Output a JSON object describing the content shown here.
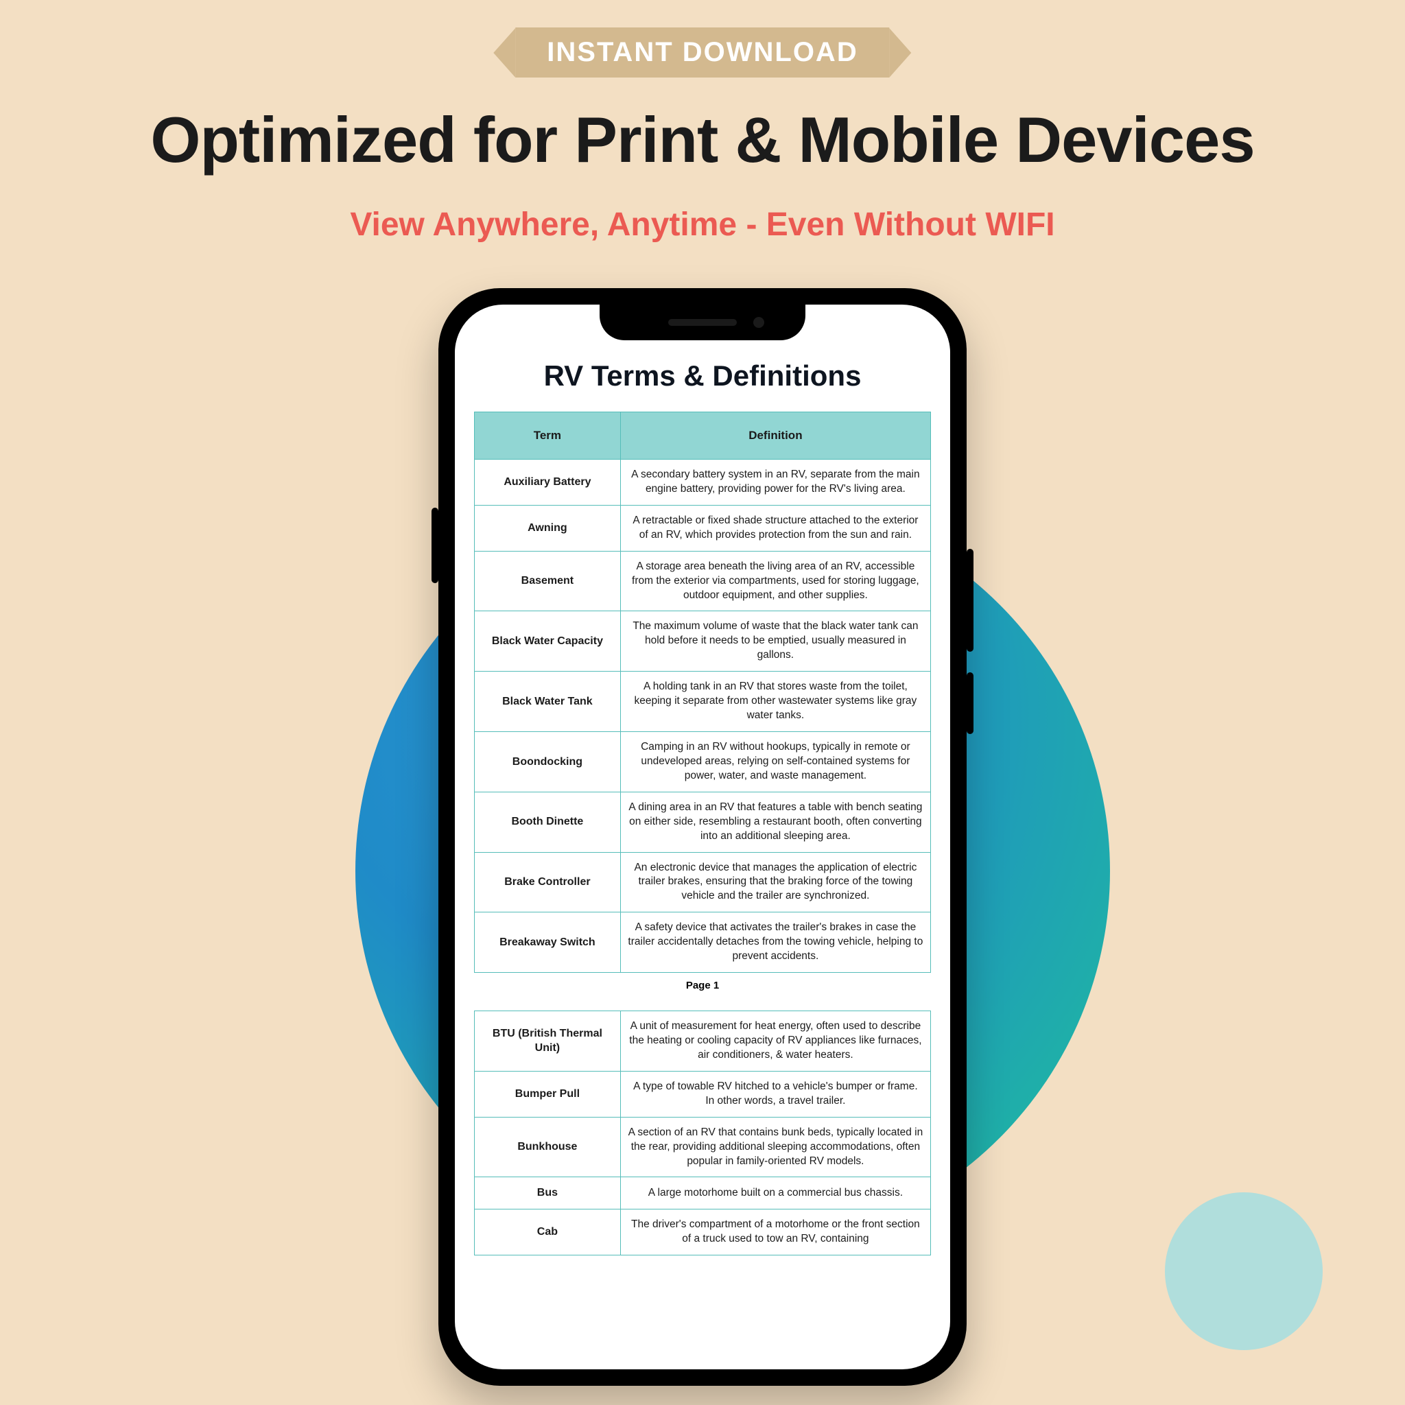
{
  "colors": {
    "page_bg": "#f3dfc3",
    "ribbon_bg": "#d3b98f",
    "ribbon_text": "#ffffff",
    "headline_text": "#1b1b1b",
    "subhead_text": "#eb5a52",
    "table_header_bg": "#91d6d3",
    "table_border": "#55bdb9",
    "circle_small": "#b0dedc",
    "circle_big_from": "#2a93d0",
    "circle_big_to": "#2ac4b0"
  },
  "ribbon_text": "INSTANT DOWNLOAD",
  "headline": "Optimized for Print & Mobile Devices",
  "subhead": "View Anywhere, Anytime - Even Without WIFI",
  "doc_title": "RV Terms & Definitions",
  "table": {
    "columns": [
      "Term",
      "Definition"
    ],
    "col_widths_pct": [
      32,
      68
    ],
    "header_fontsize": 17,
    "cell_fontsize": 15.5,
    "term_fontsize": 16
  },
  "rows_page1": [
    {
      "term": "Auxiliary Battery",
      "def": "A secondary battery system in an RV, separate from the main engine battery, providing power for the RV's living area."
    },
    {
      "term": "Awning",
      "def": "A retractable or fixed shade structure attached to the exterior of an RV, which provides protection from the sun and rain."
    },
    {
      "term": "Basement",
      "def": "A storage area beneath the living area of an RV, accessible from the exterior via compartments, used for storing luggage, outdoor equipment, and other supplies."
    },
    {
      "term": "Black Water Capacity",
      "def": "The maximum volume of waste that the black water tank can hold before it needs to be emptied, usually measured in gallons."
    },
    {
      "term": "Black Water Tank",
      "def": "A holding tank in an RV that stores waste from the toilet, keeping it separate from other wastewater systems like gray water tanks."
    },
    {
      "term": "Boondocking",
      "def": "Camping in an RV without hookups, typically in remote or undeveloped areas, relying on self-contained systems for power, water, and waste management."
    },
    {
      "term": "Booth Dinette",
      "def": "A dining area in an RV that features a table with bench seating on either side, resembling a restaurant booth, often converting into an additional sleeping area."
    },
    {
      "term": "Brake Controller",
      "def": "An electronic device that manages the application of electric trailer brakes, ensuring that the braking force of the towing vehicle and the trailer are synchronized."
    },
    {
      "term": "Breakaway Switch",
      "def": "A safety device that activates the trailer's brakes in case the trailer accidentally detaches from the towing vehicle, helping to prevent accidents."
    }
  ],
  "page_marker": "Page 1",
  "rows_page2": [
    {
      "term": "BTU (British Thermal Unit)",
      "def": "A unit of measurement for heat energy, often used to describe the heating or cooling capacity of RV appliances like furnaces, air conditioners, & water heaters."
    },
    {
      "term": "Bumper Pull",
      "def": "A type of towable RV hitched to a vehicle's bumper or frame. In other words, a travel trailer."
    },
    {
      "term": "Bunkhouse",
      "def": "A section of an RV that contains bunk beds, typically located in the rear, providing additional sleeping accommodations, often popular in family-oriented RV models."
    },
    {
      "term": "Bus",
      "def": "A large motorhome built on a commercial bus chassis."
    },
    {
      "term": "Cab",
      "def": "The driver's compartment of a motorhome or the front section of a truck used to tow an RV, containing"
    }
  ]
}
